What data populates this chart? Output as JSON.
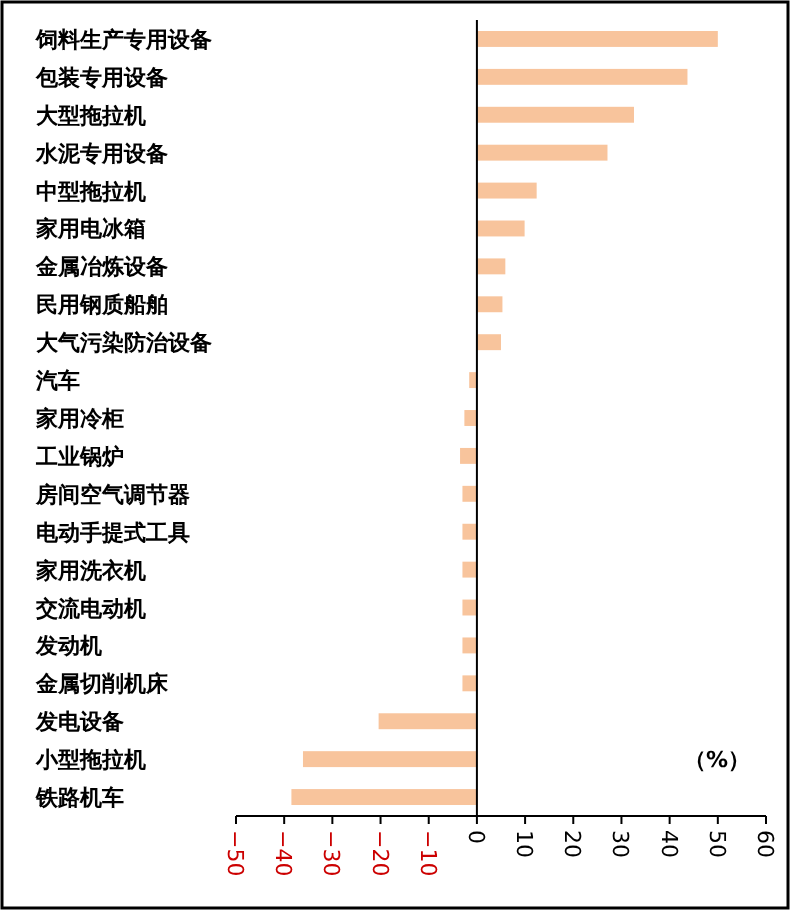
{
  "chart_data": {
    "type": "bar",
    "orientation": "horizontal",
    "categories": [
      "饲料生产专用设备",
      "包装专用设备",
      "大型拖拉机",
      "水泥专用设备",
      "中型拖拉机",
      "家用电冰箱",
      "金属冶炼设备",
      "民用钢质船舶",
      "大气污染防治设备",
      "汽车",
      "家用冷柜",
      "工业锅炉",
      "房间空气调节器",
      "电动手提式工具",
      "家用洗衣机",
      "交流电动机",
      "发动机",
      "金属切削机床",
      "发电设备",
      "小型拖拉机",
      "铁路机车"
    ],
    "values": [
      50,
      43.7,
      32.6,
      27.1,
      12.4,
      9.9,
      5.9,
      5.3,
      5.0,
      -1.6,
      -2.6,
      -3.5,
      -3,
      -3,
      -3,
      -3,
      -3,
      -3,
      -20.4,
      -36.1,
      -38.5
    ],
    "color": "#f8c49c",
    "xlim": [
      -50,
      60
    ],
    "xticks": [
      -50,
      -40,
      -30,
      -20,
      -10,
      0,
      10,
      20,
      30,
      40,
      50,
      60
    ],
    "annotations": [
      "（%）"
    ]
  }
}
